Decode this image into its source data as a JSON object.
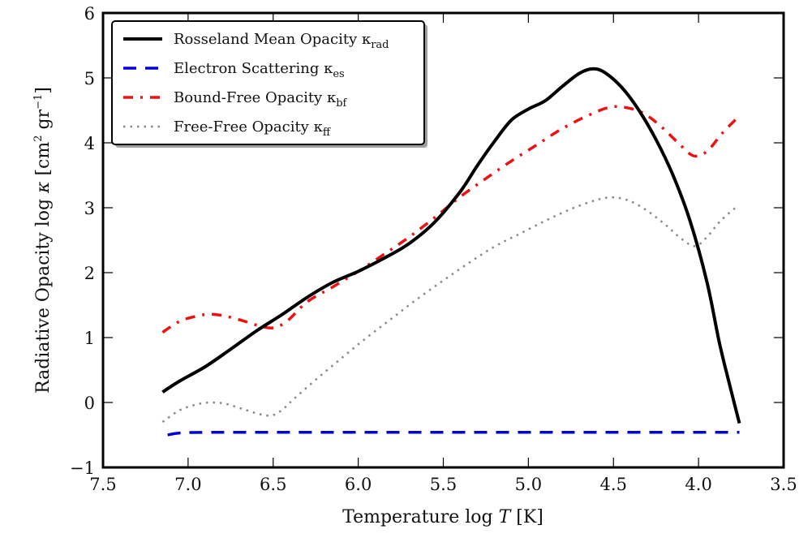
{
  "chart_data": {
    "type": "line",
    "title": "",
    "xlabel": "Temperature log T [K]",
    "xlabel_parts": {
      "pre": "Temperature log ",
      "var": "T",
      "post": " [K]"
    },
    "ylabel": "Radiative Opacity  log κ  [cm² gr⁻¹]",
    "ylabel_parts": {
      "pre": "Radiative Opacity  log ",
      "var": "κ",
      "post1": "  [cm",
      "sup1": "2",
      "mid": " gr",
      "sup2": "−1",
      "post2": "]"
    },
    "xlim": [
      7.5,
      3.5
    ],
    "ylim": [
      -1,
      6
    ],
    "x_inverted": true,
    "grid": false,
    "legend_position": "top-left",
    "xticks": [
      7.5,
      7.0,
      6.5,
      6.0,
      5.5,
      5.0,
      4.5,
      4.0,
      3.5
    ],
    "xtick_labels": [
      "7.5",
      "7.0",
      "6.5",
      "6.0",
      "5.5",
      "5.0",
      "4.5",
      "4.0",
      "3.5"
    ],
    "yticks": [
      -1,
      0,
      1,
      2,
      3,
      4,
      5,
      6
    ],
    "ytick_labels": [
      "−1",
      "0",
      "1",
      "2",
      "3",
      "4",
      "5",
      "6"
    ],
    "series": [
      {
        "name": "Rosseland Mean Opacity κrad",
        "label_main": "Rosseland Mean Opacity κ",
        "label_sub": "rad",
        "color": "#000000",
        "style": "solid",
        "x": [
          7.15,
          7.05,
          6.9,
          6.75,
          6.6,
          6.45,
          6.3,
          6.15,
          6.0,
          5.85,
          5.7,
          5.55,
          5.4,
          5.3,
          5.2,
          5.1,
          5.0,
          4.9,
          4.8,
          4.7,
          4.62,
          4.55,
          4.45,
          4.35,
          4.25,
          4.15,
          4.05,
          3.95,
          3.88,
          3.82,
          3.76
        ],
        "y": [
          0.16,
          0.33,
          0.55,
          0.82,
          1.1,
          1.35,
          1.62,
          1.85,
          2.02,
          2.22,
          2.45,
          2.78,
          3.25,
          3.65,
          4.02,
          4.35,
          4.52,
          4.65,
          4.87,
          5.07,
          5.14,
          5.08,
          4.85,
          4.5,
          4.05,
          3.5,
          2.8,
          1.85,
          0.95,
          0.3,
          -0.32
        ]
      },
      {
        "name": "Electron Scattering κes",
        "label_main": "Electron Scattering κ",
        "label_sub": "es",
        "color": "#0000dd",
        "style": "dashed",
        "x": [
          7.12,
          7.05,
          6.9,
          6.5,
          6.0,
          5.5,
          5.0,
          4.5,
          4.0,
          3.76
        ],
        "y": [
          -0.5,
          -0.47,
          -0.46,
          -0.46,
          -0.46,
          -0.46,
          -0.46,
          -0.46,
          -0.46,
          -0.46
        ]
      },
      {
        "name": "Bound-Free Opacity κbf",
        "label_main": "Bound-Free Opacity κ",
        "label_sub": "bf",
        "color": "#ee1111",
        "style": "dashdot",
        "x": [
          7.15,
          7.05,
          6.95,
          6.87,
          6.78,
          6.68,
          6.58,
          6.5,
          6.42,
          6.3,
          6.15,
          6.0,
          5.85,
          5.7,
          5.55,
          5.4,
          5.25,
          5.1,
          4.95,
          4.8,
          4.65,
          4.52,
          4.42,
          4.32,
          4.22,
          4.12,
          4.03,
          3.95,
          3.86,
          3.77
        ],
        "y": [
          1.08,
          1.25,
          1.33,
          1.36,
          1.33,
          1.26,
          1.18,
          1.15,
          1.25,
          1.55,
          1.78,
          2.02,
          2.28,
          2.55,
          2.85,
          3.17,
          3.45,
          3.72,
          3.97,
          4.22,
          4.42,
          4.55,
          4.54,
          4.45,
          4.25,
          4.0,
          3.8,
          3.87,
          4.15,
          4.39
        ]
      },
      {
        "name": "Free-Free Opacity κff",
        "label_main": "Free-Free Opacity κ",
        "label_sub": "ff",
        "color": "#888888",
        "style": "dotted",
        "x": [
          7.15,
          7.05,
          6.95,
          6.87,
          6.78,
          6.68,
          6.58,
          6.51,
          6.45,
          6.38,
          6.25,
          6.1,
          5.95,
          5.8,
          5.65,
          5.5,
          5.35,
          5.2,
          5.05,
          4.9,
          4.75,
          4.6,
          4.5,
          4.4,
          4.3,
          4.2,
          4.1,
          4.02,
          3.95,
          3.87,
          3.77
        ],
        "y": [
          -0.3,
          -0.12,
          -0.03,
          0.0,
          -0.02,
          -0.1,
          -0.18,
          -0.2,
          -0.12,
          0.05,
          0.35,
          0.68,
          1.0,
          1.3,
          1.6,
          1.88,
          2.15,
          2.4,
          2.6,
          2.8,
          2.98,
          3.12,
          3.16,
          3.1,
          2.95,
          2.75,
          2.52,
          2.41,
          2.55,
          2.8,
          3.03
        ]
      }
    ]
  }
}
